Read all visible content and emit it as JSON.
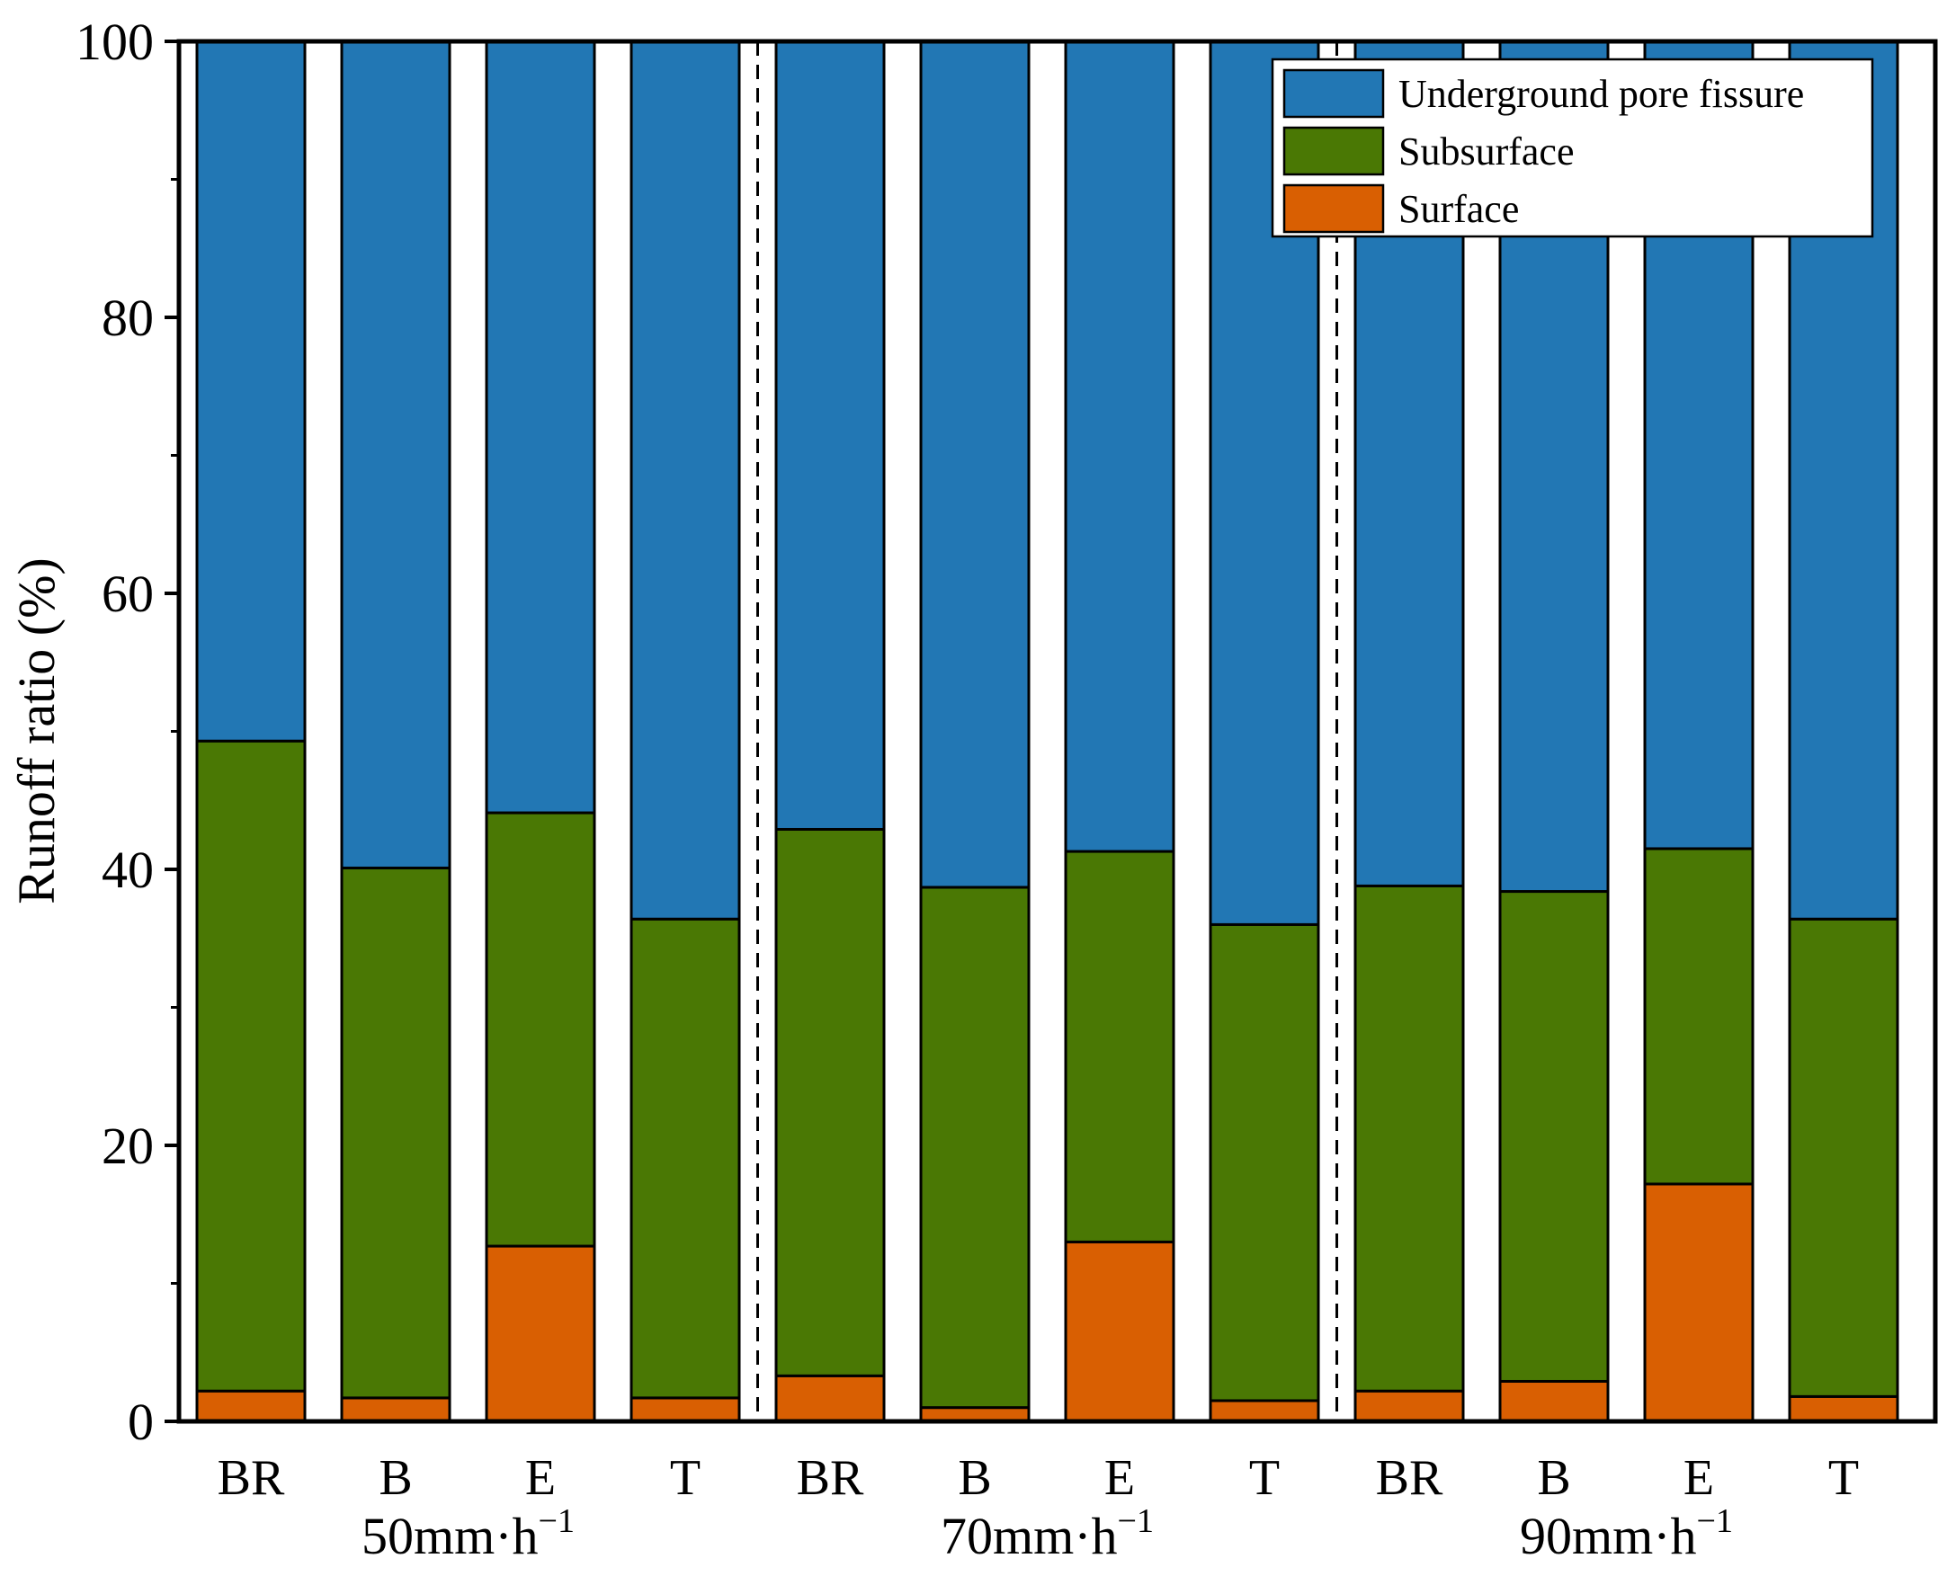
{
  "chart_data": {
    "type": "bar",
    "stacked": true,
    "title": "",
    "xlabel": "",
    "ylabel": "Runoff ratio (%)",
    "ylim": [
      0,
      100
    ],
    "yticks": [
      "0",
      "20",
      "40",
      "60",
      "80",
      "100"
    ],
    "categories": [
      "BR",
      "B",
      "E",
      "T",
      "BR",
      "B",
      "E",
      "T",
      "BR",
      "B",
      "E",
      "T"
    ],
    "groups": [
      {
        "base": "50mm·h",
        "sup": "−1"
      },
      {
        "base": "70mm·h",
        "sup": "−1"
      },
      {
        "base": "90mm·h",
        "sup": "−1"
      }
    ],
    "series": [
      {
        "name": "Surface",
        "color": "#d95f02",
        "values": [
          2.2,
          1.7,
          12.7,
          1.7,
          3.3,
          1.0,
          13.0,
          1.5,
          2.2,
          2.9,
          17.2,
          1.8
        ]
      },
      {
        "name": "Subsurface",
        "color": "#4a7804",
        "values": [
          47.1,
          38.4,
          31.4,
          34.7,
          39.6,
          37.7,
          28.3,
          34.5,
          36.6,
          35.5,
          24.3,
          34.6
        ]
      },
      {
        "name": "Underground pore fissure",
        "color": "#2277b4",
        "values": [
          50.7,
          59.9,
          55.9,
          63.6,
          57.1,
          61.3,
          58.7,
          64.0,
          61.2,
          61.6,
          58.5,
          63.6
        ]
      }
    ],
    "legend": {
      "position": "top-right",
      "order": [
        "Underground pore fissure",
        "Subsurface",
        "Surface"
      ]
    }
  }
}
